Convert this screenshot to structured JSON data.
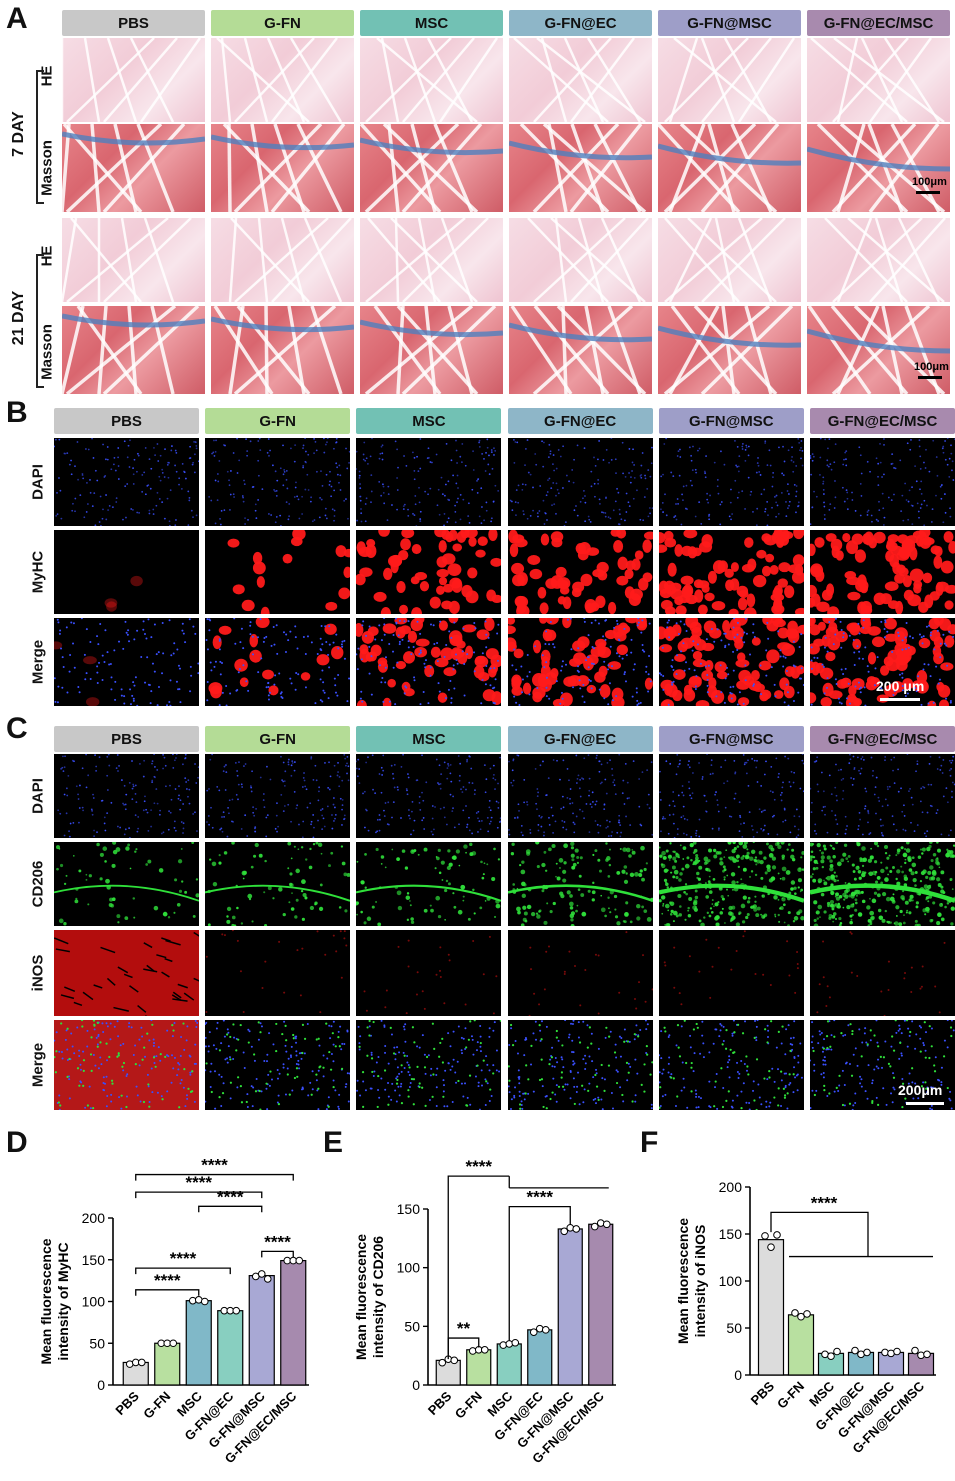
{
  "panelA": {
    "letter": "A",
    "groups": [
      "PBS",
      "G-FN",
      "MSC",
      "G-FN@EC",
      "G-FN@MSC",
      "G-FN@EC/MSC"
    ],
    "day7": "7 DAY",
    "day21": "21 DAY",
    "stains": [
      "HE",
      "Masson"
    ],
    "scale": "100μm"
  },
  "panelB": {
    "letter": "B",
    "groups": [
      "PBS",
      "G-FN",
      "MSC",
      "G-FN@EC",
      "G-FN@MSC",
      "G-FN@EC/MSC"
    ],
    "rows": [
      "DAPI",
      "MyHC",
      "Merge"
    ],
    "scale": "200 μm"
  },
  "panelC": {
    "letter": "C",
    "groups": [
      "PBS",
      "G-FN",
      "MSC",
      "G-FN@EC",
      "G-FN@MSC",
      "G-FN@EC/MSC"
    ],
    "rows": [
      "DAPI",
      "CD206",
      "iNOS",
      "Merge"
    ],
    "scale": "200μm"
  },
  "headerColors": [
    "#c8c8c8",
    "#b4dc96",
    "#72c1b4",
    "#8eb6c8",
    "#9e9ec8",
    "#a88aae"
  ],
  "chart_data": [
    {
      "panel": "D",
      "type": "bar",
      "ylabel": "Mean fluorescence intensity of MyHC",
      "ylim": [
        0,
        200
      ],
      "yticks": [
        0,
        50,
        100,
        150,
        200
      ],
      "categories": [
        "PBS",
        "G-FN",
        "MSC",
        "G-FN@EC",
        "G-FN@MSC",
        "G-FN@EC/MSC"
      ],
      "values": [
        27,
        50,
        101,
        89,
        131,
        149
      ],
      "points": [
        [
          25,
          27,
          27
        ],
        [
          50,
          50,
          50
        ],
        [
          101,
          102,
          100
        ],
        [
          89,
          89,
          89
        ],
        [
          130,
          133,
          127
        ],
        [
          149,
          149,
          149
        ]
      ],
      "colors": [
        "#dcdcdc",
        "#b8e0a0",
        "#80b8c8",
        "#88cfc0",
        "#a8a8d4",
        "#a68aae"
      ],
      "significance": [
        {
          "from": 0,
          "to": 5,
          "label": "****"
        },
        {
          "from": 0,
          "to": 4,
          "label": "****"
        },
        {
          "from": 2,
          "to": 4,
          "label": "****"
        },
        {
          "from": 0,
          "to": 3,
          "label": "****"
        },
        {
          "from": 0,
          "to": 2,
          "label": "****"
        },
        {
          "from": 4,
          "to": 5,
          "label": "****"
        }
      ]
    },
    {
      "panel": "E",
      "type": "bar",
      "ylabel": "Mean fluorescence intensity of CD206",
      "ylim": [
        0,
        150
      ],
      "yticks": [
        0,
        50,
        100,
        150
      ],
      "categories": [
        "PBS",
        "G-FN",
        "MSC",
        "G-FN@EC",
        "G-FN@MSC",
        "G-FN@EC/MSC"
      ],
      "values": [
        21,
        30,
        35,
        47,
        133,
        137
      ],
      "points": [
        [
          19,
          22,
          21
        ],
        [
          29,
          30,
          30
        ],
        [
          34,
          35,
          36
        ],
        [
          45,
          48,
          47
        ],
        [
          131,
          134,
          133
        ],
        [
          135,
          138,
          137
        ]
      ],
      "colors": [
        "#dcdcdc",
        "#b8e0a0",
        "#88cfc0",
        "#80b8c8",
        "#a8a8d4",
        "#a68aae"
      ],
      "significance": [
        {
          "label": "****"
        },
        {
          "label": "****"
        },
        {
          "label": "**"
        }
      ]
    },
    {
      "panel": "F",
      "type": "bar",
      "ylabel": "Mean fluorescence intensity of iNOS",
      "ylim": [
        0,
        200
      ],
      "yticks": [
        0,
        50,
        100,
        150,
        200
      ],
      "categories": [
        "PBS",
        "G-FN",
        "MSC",
        "G-FN@EC",
        "G-FN@MSC",
        "G-FN@EC/MSC"
      ],
      "values": [
        144,
        64,
        23,
        24,
        24,
        23
      ],
      "points": [
        [
          148,
          136,
          149
        ],
        [
          66,
          62,
          65
        ],
        [
          22,
          20,
          25
        ],
        [
          26,
          22,
          24
        ],
        [
          24,
          23,
          25
        ],
        [
          26,
          21,
          22
        ]
      ],
      "colors": [
        "#dcdcdc",
        "#b8e0a0",
        "#88cfc0",
        "#80b8c8",
        "#a8a8d4",
        "#a68aae"
      ],
      "significance": [
        {
          "label": "****"
        }
      ]
    }
  ]
}
